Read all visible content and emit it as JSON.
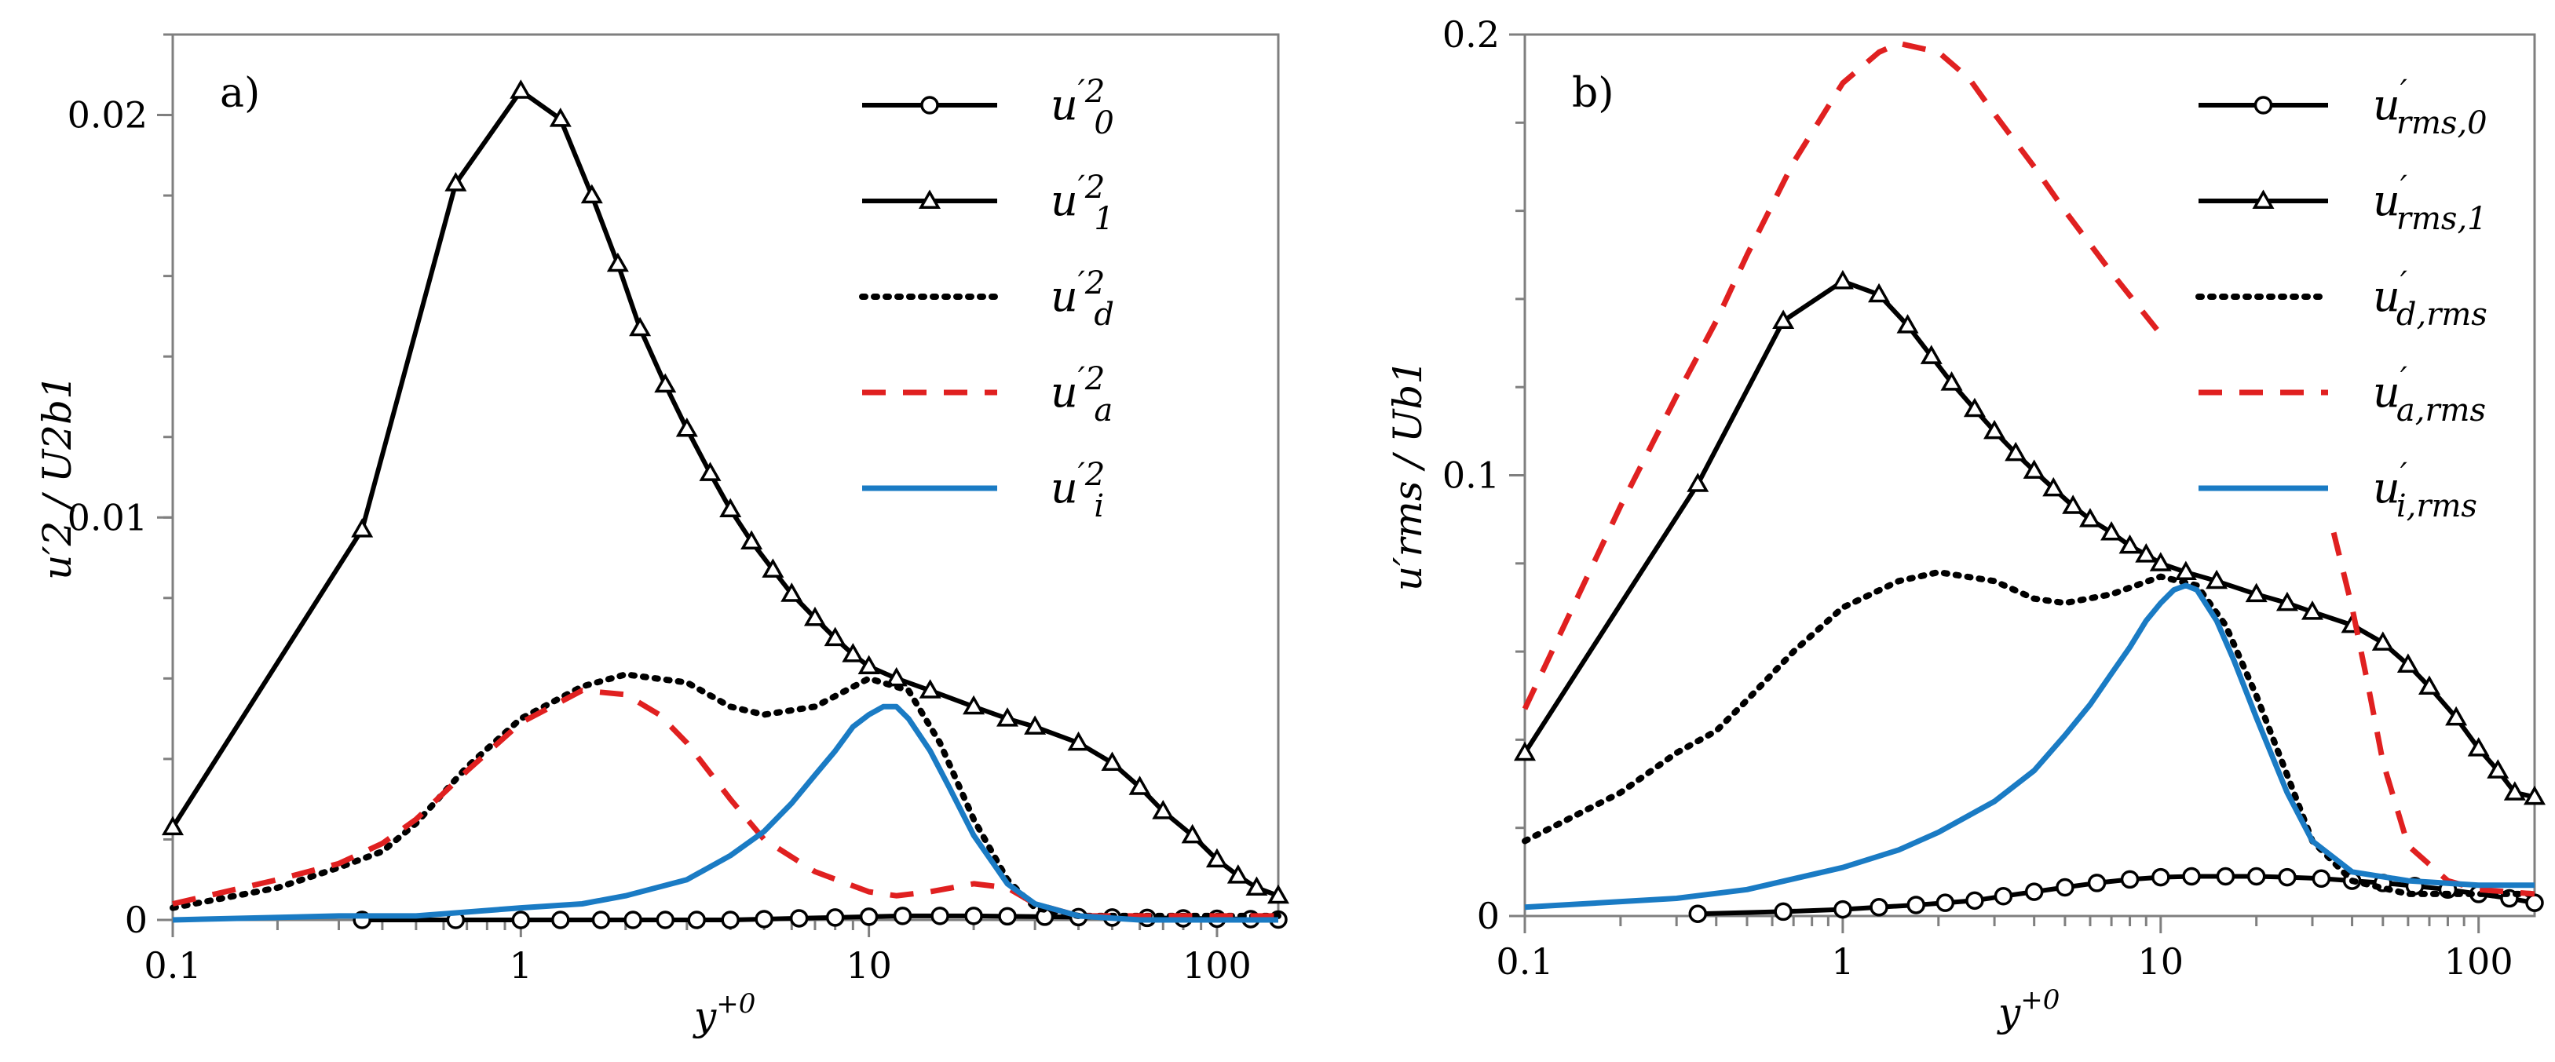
{
  "chart_data": [
    {
      "panel_label": "a)",
      "type": "line",
      "x_scale": "log",
      "xlabel": "y",
      "xlabel_sup": "+0",
      "ylabel": "u′2 / U2b1",
      "xlim": [
        0.1,
        150
      ],
      "ylim": [
        0,
        0.022
      ],
      "xticks": [
        0.1,
        1,
        10,
        100
      ],
      "xtick_labels": [
        "0.1",
        "1",
        "10",
        "100"
      ],
      "yticks": [
        0,
        0.01,
        0.02
      ],
      "ytick_labels": [
        "0",
        "0.01",
        "0.02"
      ],
      "legend": [
        {
          "base": "u",
          "sup": "′2",
          "sub": "0"
        },
        {
          "base": "u",
          "sup": "′2",
          "sub": "1"
        },
        {
          "base": "u",
          "sup": "′2",
          "sub": "d"
        },
        {
          "base": "u",
          "sup": "′2",
          "sub": "a"
        },
        {
          "base": "u",
          "sup": "′2",
          "sub": "i"
        }
      ],
      "series": [
        {
          "name": "u0'2",
          "style": "solid-circle",
          "color": "#000000",
          "x": [
            0.35,
            0.65,
            1.0,
            1.3,
            1.7,
            2.1,
            2.6,
            3.2,
            4.0,
            5.0,
            6.3,
            8.0,
            10,
            12.5,
            16,
            20,
            25,
            32,
            40,
            50,
            63,
            80,
            100,
            125,
            150
          ],
          "y": [
            0,
            0,
            0,
            0,
            0,
            0,
            0,
            0,
            0,
            2e-05,
            4e-05,
            6e-05,
            8e-05,
            0.0001,
            0.0001,
            0.0001,
            9e-05,
            8e-05,
            7e-05,
            6e-05,
            5e-05,
            4e-05,
            3e-05,
            2e-05,
            1e-05
          ]
        },
        {
          "name": "u1'2",
          "style": "solid-triangle",
          "color": "#000000",
          "x": [
            0.1,
            0.35,
            0.65,
            1.0,
            1.3,
            1.6,
            1.9,
            2.2,
            2.6,
            3.0,
            3.5,
            4.0,
            4.6,
            5.3,
            6.0,
            7.0,
            8.0,
            9.0,
            10,
            12,
            15,
            20,
            25,
            30,
            40,
            50,
            60,
            70,
            85,
            100,
            115,
            130,
            150
          ],
          "y": [
            0.0023,
            0.0097,
            0.0183,
            0.0206,
            0.0199,
            0.018,
            0.0163,
            0.0147,
            0.0133,
            0.0122,
            0.0111,
            0.0102,
            0.0094,
            0.0087,
            0.0081,
            0.0075,
            0.007,
            0.0066,
            0.0063,
            0.006,
            0.0057,
            0.0053,
            0.005,
            0.0048,
            0.0044,
            0.0039,
            0.0033,
            0.0027,
            0.0021,
            0.0015,
            0.0011,
            0.0008,
            0.0006
          ]
        },
        {
          "name": "ud'2",
          "style": "dotted",
          "color": "#000000",
          "x": [
            0.1,
            0.2,
            0.3,
            0.4,
            0.5,
            0.7,
            1.0,
            1.5,
            2.0,
            3.0,
            4.0,
            5.0,
            7.0,
            10,
            13,
            16,
            20,
            25,
            30,
            40,
            60,
            100,
            150
          ],
          "y": [
            0.0003,
            0.0008,
            0.0013,
            0.0017,
            0.0024,
            0.0038,
            0.005,
            0.0058,
            0.0061,
            0.0059,
            0.0053,
            0.0051,
            0.0053,
            0.006,
            0.0057,
            0.0044,
            0.0025,
            0.001,
            0.0003,
            0.0001,
            0.0001,
            0.0001,
            0.0001
          ]
        },
        {
          "name": "ua'2",
          "style": "dashed",
          "color": "#e02020",
          "x": [
            0.1,
            0.2,
            0.3,
            0.4,
            0.5,
            0.7,
            1.0,
            1.5,
            2.0,
            2.5,
            3.0,
            4.0,
            5.0,
            7.0,
            10,
            12,
            15,
            20,
            25,
            30,
            40,
            60,
            100,
            150
          ],
          "y": [
            0.0004,
            0.001,
            0.0014,
            0.0019,
            0.0025,
            0.0037,
            0.0049,
            0.0057,
            0.0056,
            0.0051,
            0.0044,
            0.003,
            0.002,
            0.0012,
            0.0007,
            0.0006,
            0.0007,
            0.0009,
            0.0008,
            0.0004,
            0.0001,
            0.0001,
            0.0001,
            0.0001
          ]
        },
        {
          "name": "ui'2",
          "style": "solid",
          "color": "#1a7bc4",
          "x": [
            0.1,
            0.3,
            0.5,
            1.0,
            1.5,
            2.0,
            3.0,
            4.0,
            5.0,
            6.0,
            7.0,
            8.0,
            9.0,
            10,
            11,
            12,
            13,
            15,
            17,
            20,
            25,
            30,
            40,
            60,
            100,
            150
          ],
          "y": [
            0.0,
            0.0001,
            0.0001,
            0.0003,
            0.0004,
            0.0006,
            0.001,
            0.0016,
            0.0022,
            0.0029,
            0.0036,
            0.0042,
            0.0048,
            0.0051,
            0.0053,
            0.0053,
            0.005,
            0.0042,
            0.0033,
            0.0021,
            0.0009,
            0.0004,
            0.0001,
            0.0,
            0.0,
            0.0
          ]
        }
      ]
    },
    {
      "panel_label": "b)",
      "type": "line",
      "x_scale": "log",
      "xlabel": "y",
      "xlabel_sup": "+0",
      "ylabel": "u′rms / Ub1",
      "xlim": [
        0.1,
        150
      ],
      "ylim": [
        0,
        0.2
      ],
      "xticks": [
        0.1,
        1,
        10,
        100
      ],
      "xtick_labels": [
        "0.1",
        "1",
        "10",
        "100"
      ],
      "yticks": [
        0,
        0.1,
        0.2
      ],
      "ytick_labels": [
        "0",
        "0.1",
        "0.2"
      ],
      "legend": [
        {
          "base": "u",
          "sup": "′",
          "sub": "rms,0"
        },
        {
          "base": "u",
          "sup": "′",
          "sub": "rms,1"
        },
        {
          "base": "u",
          "sup": "′",
          "sub": "d,rms"
        },
        {
          "base": "u",
          "sup": "′",
          "sub": "a,rms"
        },
        {
          "base": "u",
          "sup": "′",
          "sub": "i,rms"
        }
      ],
      "series": [
        {
          "name": "u'rms,0",
          "style": "solid-circle",
          "color": "#000000",
          "x": [
            0.35,
            0.65,
            1.0,
            1.3,
            1.7,
            2.1,
            2.6,
            3.2,
            4.0,
            5.0,
            6.3,
            8.0,
            10,
            12.5,
            16,
            20,
            25,
            32,
            40,
            50,
            63,
            80,
            100,
            125,
            150
          ],
          "y": [
            0.0005,
            0.001,
            0.0015,
            0.002,
            0.0025,
            0.003,
            0.0035,
            0.0045,
            0.0055,
            0.0065,
            0.0075,
            0.0083,
            0.0088,
            0.009,
            0.009,
            0.009,
            0.0088,
            0.0085,
            0.008,
            0.0075,
            0.0068,
            0.006,
            0.005,
            0.004,
            0.003
          ]
        },
        {
          "name": "u'rms,1",
          "style": "solid-triangle",
          "color": "#000000",
          "x": [
            0.1,
            0.35,
            0.65,
            1.0,
            1.3,
            1.6,
            1.9,
            2.2,
            2.6,
            3.0,
            3.5,
            4.0,
            4.6,
            5.3,
            6.0,
            7.0,
            8.0,
            9.0,
            10,
            12,
            15,
            20,
            25,
            30,
            40,
            50,
            60,
            70,
            85,
            100,
            115,
            130,
            150
          ],
          "y": [
            0.037,
            0.098,
            0.135,
            0.144,
            0.141,
            0.134,
            0.127,
            0.121,
            0.115,
            0.11,
            0.105,
            0.101,
            0.097,
            0.093,
            0.09,
            0.087,
            0.084,
            0.082,
            0.08,
            0.078,
            0.076,
            0.073,
            0.071,
            0.069,
            0.066,
            0.062,
            0.057,
            0.052,
            0.045,
            0.038,
            0.033,
            0.028,
            0.027
          ]
        },
        {
          "name": "u'd,rms",
          "style": "dotted",
          "color": "#000000",
          "x": [
            0.1,
            0.2,
            0.3,
            0.4,
            0.5,
            0.7,
            1.0,
            1.5,
            2.0,
            3.0,
            4.0,
            5.0,
            7.0,
            10,
            13,
            16,
            20,
            25,
            30,
            40,
            60,
            100,
            150
          ],
          "y": [
            0.017,
            0.028,
            0.037,
            0.042,
            0.049,
            0.06,
            0.07,
            0.076,
            0.078,
            0.076,
            0.072,
            0.071,
            0.073,
            0.077,
            0.075,
            0.066,
            0.05,
            0.032,
            0.017,
            0.008,
            0.005,
            0.005,
            0.005
          ]
        },
        {
          "name": "u'a,rms",
          "style": "dashed",
          "color": "#e02020",
          "x": [
            0.1,
            0.2,
            0.3,
            0.4,
            0.5,
            0.7,
            1.0,
            1.3,
            1.5,
            2.0,
            2.5,
            3.0,
            4.0,
            5.0,
            7.0,
            10,
            30,
            35,
            40,
            45,
            50,
            60,
            80,
            100,
            150
          ],
          "y": [
            0.047,
            0.093,
            0.118,
            0.135,
            0.15,
            0.171,
            0.189,
            0.196,
            0.198,
            0.196,
            0.19,
            0.182,
            0.17,
            0.16,
            0.146,
            0.132,
            null,
            0.087,
            0.07,
            0.052,
            0.035,
            0.016,
            0.008,
            0.006,
            0.005
          ]
        },
        {
          "name": "u'i,rms",
          "style": "solid",
          "color": "#1a7bc4",
          "x": [
            0.1,
            0.3,
            0.5,
            1.0,
            1.5,
            2.0,
            3.0,
            4.0,
            5.0,
            6.0,
            7.0,
            8.0,
            9.0,
            10,
            11,
            12,
            13,
            15,
            17,
            20,
            25,
            30,
            40,
            60,
            100,
            150
          ],
          "y": [
            0.002,
            0.004,
            0.006,
            0.011,
            0.015,
            0.019,
            0.026,
            0.033,
            0.041,
            0.048,
            0.055,
            0.061,
            0.067,
            0.071,
            0.074,
            0.075,
            0.074,
            0.067,
            0.058,
            0.045,
            0.028,
            0.017,
            0.01,
            0.008,
            0.007,
            0.007
          ]
        }
      ]
    }
  ]
}
